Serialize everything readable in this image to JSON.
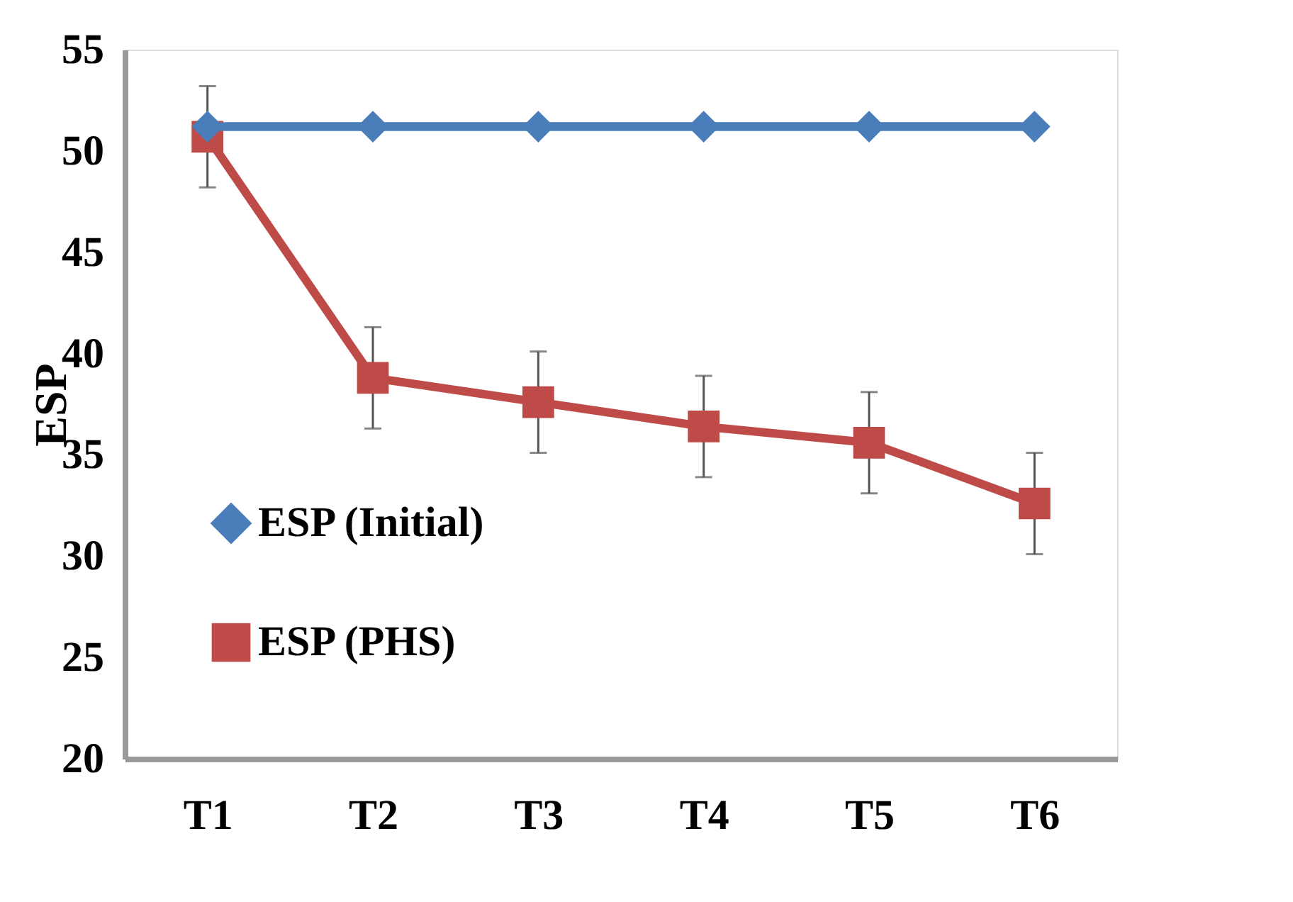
{
  "chart_data": {
    "type": "line",
    "ylabel": "ESP",
    "categories": [
      "T1",
      "T2",
      "T3",
      "T4",
      "T5",
      "T6"
    ],
    "ylim": [
      20,
      55
    ],
    "yticks": [
      20,
      25,
      30,
      35,
      40,
      45,
      50,
      55
    ],
    "grid": false,
    "legend": "bottom left",
    "line_style": "solid",
    "series": [
      {
        "name": "ESP (Initial)",
        "color": "#4a7ebb",
        "marker": "diamond",
        "values": [
          51.2,
          51.2,
          51.2,
          51.2,
          51.2,
          51.2
        ]
      },
      {
        "name": "ESP (PHS)",
        "color": "#be4b48",
        "marker": "square",
        "values": [
          50.7,
          38.8,
          37.6,
          36.4,
          35.6,
          32.6
        ],
        "errors": [
          2.5,
          2.5,
          2.5,
          2.5,
          2.5,
          2.5
        ]
      }
    ]
  }
}
